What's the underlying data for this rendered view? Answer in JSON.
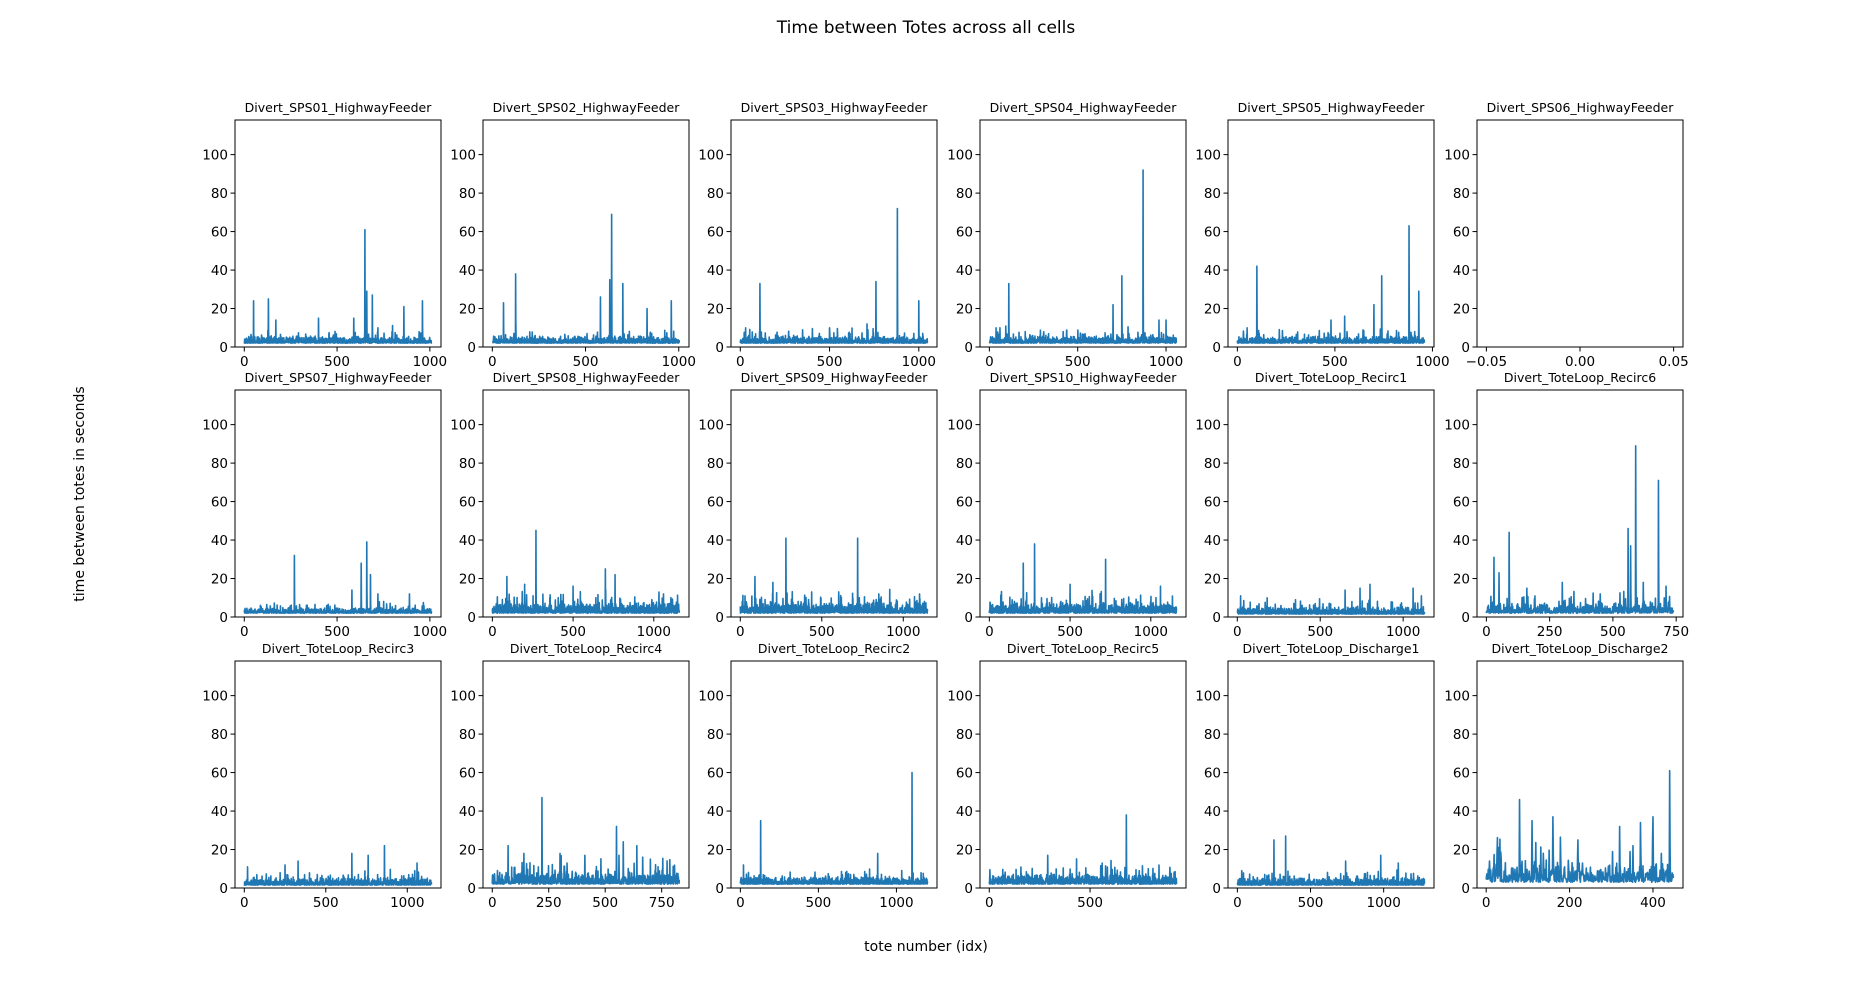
{
  "figure": {
    "title": "Time between Totes across all cells",
    "xlabel": "tote number (idx)",
    "ylabel": "time between totes in seconds"
  },
  "colors": {
    "line": "#1f77b4",
    "axes": "#000000"
  },
  "chart_data": [
    {
      "type": "line",
      "title": "Divert_SPS01_HighwayFeeder",
      "n": 1010,
      "xticks": [
        0,
        500,
        1000
      ],
      "xlim": [
        -50,
        1060
      ],
      "ylim": [
        0,
        118
      ],
      "yticks": [
        0,
        20,
        40,
        60,
        80,
        100
      ],
      "base": 2,
      "noise": 4,
      "peaks": [
        [
          50,
          24
        ],
        [
          130,
          25
        ],
        [
          170,
          14
        ],
        [
          400,
          15
        ],
        [
          590,
          15
        ],
        [
          650,
          61
        ],
        [
          660,
          29
        ],
        [
          690,
          27
        ],
        [
          720,
          10
        ],
        [
          860,
          21
        ],
        [
          960,
          24
        ]
      ]
    },
    {
      "type": "line",
      "title": "Divert_SPS02_HighwayFeeder",
      "n": 1005,
      "xticks": [
        0,
        500,
        1000
      ],
      "xlim": [
        -50,
        1055
      ],
      "ylim": [
        0,
        118
      ],
      "yticks": [
        0,
        20,
        40,
        60,
        80,
        100
      ],
      "base": 2,
      "noise": 4,
      "peaks": [
        [
          60,
          23
        ],
        [
          125,
          38
        ],
        [
          580,
          26
        ],
        [
          630,
          35
        ],
        [
          640,
          69
        ],
        [
          700,
          33
        ],
        [
          830,
          20
        ],
        [
          960,
          24
        ]
      ]
    },
    {
      "type": "line",
      "title": "Divert_SPS03_HighwayFeeder",
      "n": 1050,
      "xticks": [
        0,
        500,
        1000
      ],
      "xlim": [
        -52,
        1102
      ],
      "ylim": [
        0,
        118
      ],
      "yticks": [
        0,
        20,
        40,
        60,
        80,
        100
      ],
      "base": 2,
      "noise": 4,
      "peaks": [
        [
          30,
          10
        ],
        [
          110,
          33
        ],
        [
          500,
          10
        ],
        [
          760,
          34
        ],
        [
          710,
          12
        ],
        [
          880,
          72
        ],
        [
          1000,
          24
        ]
      ]
    },
    {
      "type": "line",
      "title": "Divert_SPS04_HighwayFeeder",
      "n": 1060,
      "xticks": [
        0,
        500,
        1000
      ],
      "xlim": [
        -53,
        1113
      ],
      "ylim": [
        0,
        118
      ],
      "yticks": [
        0,
        20,
        40,
        60,
        80,
        100
      ],
      "base": 2,
      "noise": 4,
      "peaks": [
        [
          60,
          10
        ],
        [
          110,
          33
        ],
        [
          700,
          22
        ],
        [
          750,
          37
        ],
        [
          870,
          92
        ],
        [
          960,
          14
        ],
        [
          1000,
          14
        ]
      ]
    },
    {
      "type": "line",
      "title": "Divert_SPS05_HighwayFeeder",
      "n": 960,
      "xticks": [
        0,
        500,
        1000
      ],
      "xlim": [
        -48,
        1008
      ],
      "ylim": [
        0,
        118
      ],
      "yticks": [
        0,
        20,
        40,
        60,
        80,
        100
      ],
      "base": 2,
      "noise": 4,
      "peaks": [
        [
          50,
          10
        ],
        [
          100,
          42
        ],
        [
          480,
          14
        ],
        [
          550,
          16
        ],
        [
          700,
          22
        ],
        [
          740,
          37
        ],
        [
          880,
          63
        ],
        [
          930,
          29
        ]
      ]
    },
    {
      "type": "line",
      "title": "Divert_SPS06_HighwayFeeder",
      "n": 0,
      "xticks": [
        -0.05,
        0.0,
        0.05
      ],
      "xtick_labels": [
        "−0.05",
        "0.00",
        "0.05"
      ],
      "xlim": [
        -0.055,
        0.055
      ],
      "ylim": [
        0,
        118
      ],
      "yticks": [
        0,
        20,
        40,
        60,
        80,
        100
      ],
      "base": 0,
      "noise": 0,
      "peaks": []
    },
    {
      "type": "line",
      "title": "Divert_SPS07_HighwayFeeder",
      "n": 1010,
      "xticks": [
        0,
        500,
        1000
      ],
      "xlim": [
        -50,
        1060
      ],
      "ylim": [
        0,
        118
      ],
      "yticks": [
        0,
        20,
        40,
        60,
        80,
        100
      ],
      "base": 2,
      "noise": 3,
      "peaks": [
        [
          270,
          32
        ],
        [
          580,
          14
        ],
        [
          630,
          28
        ],
        [
          660,
          39
        ],
        [
          680,
          22
        ],
        [
          720,
          12
        ],
        [
          890,
          12
        ]
      ]
    },
    {
      "type": "line",
      "title": "Divert_SPS08_HighwayFeeder",
      "n": 1160,
      "xticks": [
        0,
        500,
        1000
      ],
      "xlim": [
        -58,
        1218
      ],
      "ylim": [
        0,
        118
      ],
      "yticks": [
        0,
        20,
        40,
        60,
        80,
        100
      ],
      "base": 2,
      "noise": 6,
      "peaks": [
        [
          90,
          21
        ],
        [
          200,
          17
        ],
        [
          270,
          45
        ],
        [
          500,
          16
        ],
        [
          700,
          25
        ],
        [
          760,
          22
        ],
        [
          1060,
          12
        ]
      ]
    },
    {
      "type": "line",
      "title": "Divert_SPS09_HighwayFeeder",
      "n": 1150,
      "xticks": [
        0,
        500,
        1000
      ],
      "xlim": [
        -57,
        1207
      ],
      "ylim": [
        0,
        118
      ],
      "yticks": [
        0,
        20,
        40,
        60,
        80,
        100
      ],
      "base": 2,
      "noise": 6,
      "peaks": [
        [
          90,
          21
        ],
        [
          200,
          18
        ],
        [
          280,
          41
        ],
        [
          720,
          41
        ],
        [
          850,
          12
        ],
        [
          1100,
          12
        ]
      ]
    },
    {
      "type": "line",
      "title": "Divert_SPS10_HighwayFeeder",
      "n": 1160,
      "xticks": [
        0,
        500,
        1000
      ],
      "xlim": [
        -58,
        1218
      ],
      "ylim": [
        0,
        118
      ],
      "yticks": [
        0,
        20,
        40,
        60,
        80,
        100
      ],
      "base": 2,
      "noise": 6,
      "peaks": [
        [
          210,
          28
        ],
        [
          280,
          38
        ],
        [
          500,
          17
        ],
        [
          720,
          30
        ],
        [
          1060,
          16
        ]
      ]
    },
    {
      "type": "line",
      "title": "Divert_ToteLoop_Recirc1",
      "n": 1130,
      "xticks": [
        0,
        500,
        1000
      ],
      "xlim": [
        -56,
        1186
      ],
      "ylim": [
        0,
        118
      ],
      "yticks": [
        0,
        20,
        40,
        60,
        80,
        100
      ],
      "base": 1.5,
      "noise": 4,
      "peaks": [
        [
          20,
          11
        ],
        [
          180,
          10
        ],
        [
          650,
          14
        ],
        [
          740,
          15
        ],
        [
          800,
          17
        ],
        [
          1060,
          15
        ],
        [
          1110,
          11
        ]
      ]
    },
    {
      "type": "line",
      "title": "Divert_ToteLoop_Recirc6",
      "n": 740,
      "xticks": [
        0,
        250,
        500,
        750
      ],
      "xlim": [
        -37,
        777
      ],
      "ylim": [
        0,
        118
      ],
      "yticks": [
        0,
        20,
        40,
        60,
        80,
        100
      ],
      "base": 2,
      "noise": 6,
      "peaks": [
        [
          30,
          31
        ],
        [
          50,
          23
        ],
        [
          90,
          44
        ],
        [
          160,
          15
        ],
        [
          300,
          18
        ],
        [
          450,
          12
        ],
        [
          560,
          46
        ],
        [
          570,
          37
        ],
        [
          590,
          89
        ],
        [
          620,
          18
        ],
        [
          680,
          71
        ],
        [
          710,
          16
        ]
      ]
    },
    {
      "type": "line",
      "title": "Divert_ToteLoop_Recirc3",
      "n": 1150,
      "xticks": [
        0,
        500,
        1000
      ],
      "xlim": [
        -57,
        1207
      ],
      "ylim": [
        0,
        118
      ],
      "yticks": [
        0,
        20,
        40,
        60,
        80,
        100
      ],
      "base": 1.5,
      "noise": 4,
      "peaks": [
        [
          20,
          11
        ],
        [
          250,
          12
        ],
        [
          330,
          14
        ],
        [
          660,
          18
        ],
        [
          760,
          17
        ],
        [
          860,
          22
        ],
        [
          1060,
          13
        ]
      ]
    },
    {
      "type": "line",
      "title": "Divert_ToteLoop_Recirc4",
      "n": 830,
      "xticks": [
        0,
        250,
        500,
        750
      ],
      "xlim": [
        -41,
        871
      ],
      "ylim": [
        0,
        118
      ],
      "yticks": [
        0,
        20,
        40,
        60,
        80,
        100
      ],
      "base": 2,
      "noise": 7,
      "peaks": [
        [
          70,
          22
        ],
        [
          140,
          18
        ],
        [
          220,
          47
        ],
        [
          300,
          18
        ],
        [
          410,
          17
        ],
        [
          550,
          32
        ],
        [
          580,
          24
        ],
        [
          640,
          22
        ],
        [
          700,
          15
        ]
      ]
    },
    {
      "type": "line",
      "title": "Divert_ToteLoop_Recirc2",
      "n": 1200,
      "xticks": [
        0,
        500,
        1000
      ],
      "xlim": [
        -60,
        1260
      ],
      "ylim": [
        0,
        118
      ],
      "yticks": [
        0,
        20,
        40,
        60,
        80,
        100
      ],
      "base": 2,
      "noise": 4,
      "peaks": [
        [
          20,
          12
        ],
        [
          130,
          35
        ],
        [
          880,
          18
        ],
        [
          1100,
          60
        ]
      ]
    },
    {
      "type": "line",
      "title": "Divert_ToteLoop_Recirc5",
      "n": 930,
      "xticks": [
        0,
        500
      ],
      "xlim": [
        -46,
        976
      ],
      "ylim": [
        0,
        118
      ],
      "yticks": [
        0,
        20,
        40,
        60,
        80,
        100
      ],
      "base": 2,
      "noise": 6,
      "peaks": [
        [
          290,
          17
        ],
        [
          680,
          38
        ],
        [
          560,
          13
        ]
      ]
    },
    {
      "type": "line",
      "title": "Divert_ToteLoop_Discharge1",
      "n": 1280,
      "xticks": [
        0,
        500,
        1000
      ],
      "xlim": [
        -64,
        1344
      ],
      "ylim": [
        0,
        118
      ],
      "yticks": [
        0,
        20,
        40,
        60,
        80,
        100
      ],
      "base": 1.5,
      "noise": 4,
      "peaks": [
        [
          30,
          9
        ],
        [
          250,
          25
        ],
        [
          330,
          27
        ],
        [
          740,
          14
        ],
        [
          980,
          17
        ],
        [
          1100,
          13
        ]
      ]
    },
    {
      "type": "line",
      "title": "Divert_ToteLoop_Discharge2",
      "n": 450,
      "xticks": [
        0,
        200,
        400
      ],
      "xlim": [
        -22,
        472
      ],
      "ylim": [
        0,
        118
      ],
      "yticks": [
        0,
        20,
        40,
        60,
        80,
        100
      ],
      "base": 3,
      "noise": 12,
      "peaks": [
        [
          30,
          21
        ],
        [
          80,
          46
        ],
        [
          110,
          35
        ],
        [
          160,
          37
        ],
        [
          220,
          25
        ],
        [
          320,
          32
        ],
        [
          370,
          34
        ],
        [
          400,
          37
        ],
        [
          420,
          18
        ],
        [
          440,
          61
        ]
      ]
    }
  ]
}
